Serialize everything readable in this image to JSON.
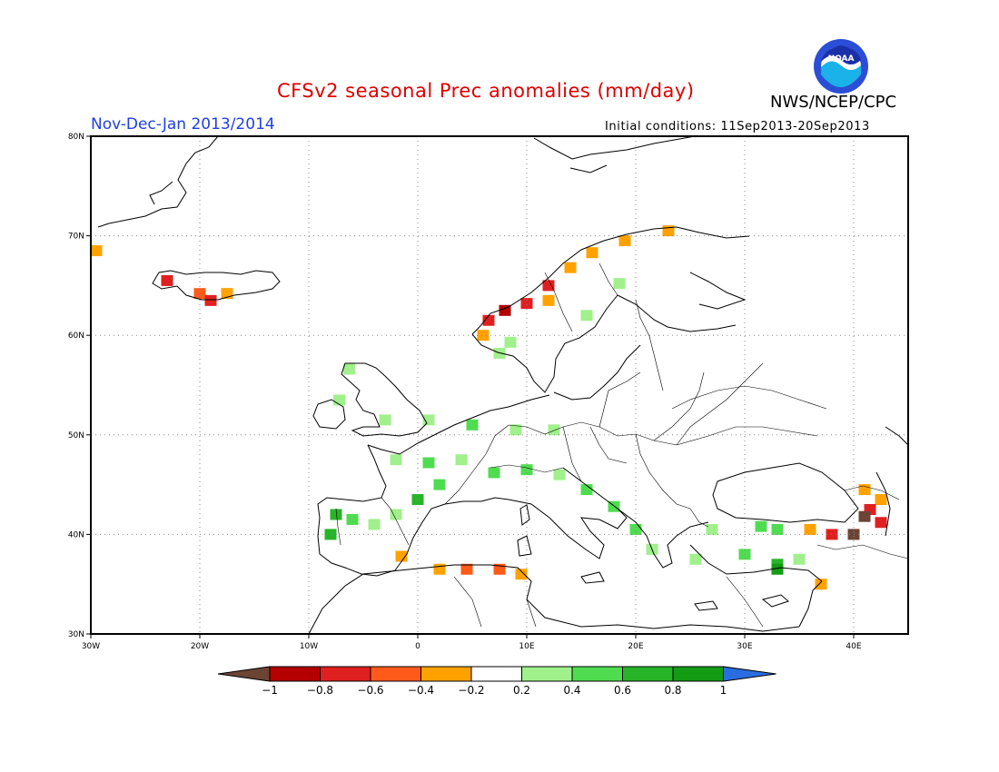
{
  "header": {
    "title": "CFSv2 seasonal Prec anomalies (mm/day)",
    "period": "Nov-Dec-Jan 2013/2014",
    "initial_conditions": "Initial conditions: 11Sep2013-20Sep2013",
    "organization": "NWS/NCEP/CPC",
    "logo_text": "NOAA"
  },
  "map": {
    "lon_labels": [
      "30W",
      "20W",
      "10W",
      "0",
      "10E",
      "20E",
      "30E",
      "40E"
    ],
    "lat_labels": [
      "30N",
      "40N",
      "50N",
      "60N",
      "70N",
      "80N"
    ],
    "lon_range": [
      -30,
      45
    ],
    "lat_range": [
      30,
      80
    ]
  },
  "colorbar": {
    "labels": [
      "-1",
      "-0.8",
      "-0.6",
      "-0.4",
      "-0.2",
      "0.2",
      "0.4",
      "0.6",
      "0.8",
      "1"
    ],
    "colors": [
      "#6b4434",
      "#b40000",
      "#e02020",
      "#ff5a1a",
      "#ffa200",
      "#ffffff",
      "#a0f08c",
      "#50dc50",
      "#28b428",
      "#149b14",
      "#2a6de0"
    ]
  },
  "anomaly_cells": [
    {
      "lon": -29.5,
      "lat": 68.5,
      "v": -0.3
    },
    {
      "lon": -23,
      "lat": 65.5,
      "v": -0.7
    },
    {
      "lon": -20,
      "lat": 64.2,
      "v": -0.5
    },
    {
      "lon": -19,
      "lat": 63.5,
      "v": -0.8
    },
    {
      "lon": -17.5,
      "lat": 64.2,
      "v": -0.3
    },
    {
      "lon": 6.5,
      "lat": 61.5,
      "v": -0.8
    },
    {
      "lon": 8,
      "lat": 62.5,
      "v": -0.9
    },
    {
      "lon": 10,
      "lat": 63.2,
      "v": -0.7
    },
    {
      "lon": 12,
      "lat": 65,
      "v": -0.7
    },
    {
      "lon": 14,
      "lat": 66.8,
      "v": -0.3
    },
    {
      "lon": 16,
      "lat": 68.3,
      "v": -0.3
    },
    {
      "lon": 19,
      "lat": 69.5,
      "v": -0.3
    },
    {
      "lon": 23,
      "lat": 70.5,
      "v": -0.3
    },
    {
      "lon": 6,
      "lat": 60,
      "v": -0.3
    },
    {
      "lon": 12,
      "lat": 63.5,
      "v": -0.3
    },
    {
      "lon": 18.5,
      "lat": 65.2,
      "v": 0.3
    },
    {
      "lon": 15.5,
      "lat": 62.0,
      "v": 0.3
    },
    {
      "lon": 8.5,
      "lat": 59.3,
      "v": 0.3
    },
    {
      "lon": 7.5,
      "lat": 58.2,
      "v": 0.3
    },
    {
      "lon": -6.3,
      "lat": 56.6,
      "v": 0.3
    },
    {
      "lon": -7.2,
      "lat": 53.5,
      "v": 0.3
    },
    {
      "lon": -3,
      "lat": 51.5,
      "v": 0.3
    },
    {
      "lon": 1,
      "lat": 51.5,
      "v": 0.3
    },
    {
      "lon": 5,
      "lat": 51,
      "v": 0.4
    },
    {
      "lon": 9,
      "lat": 50.5,
      "v": 0.3
    },
    {
      "lon": 12.5,
      "lat": 50.5,
      "v": 0.3
    },
    {
      "lon": -2,
      "lat": 47.5,
      "v": 0.3
    },
    {
      "lon": 1,
      "lat": 47.2,
      "v": 0.4
    },
    {
      "lon": 4,
      "lat": 47.5,
      "v": 0.3
    },
    {
      "lon": 2,
      "lat": 45,
      "v": 0.4
    },
    {
      "lon": 0,
      "lat": 43.5,
      "v": 0.6
    },
    {
      "lon": 7,
      "lat": 46.2,
      "v": 0.5
    },
    {
      "lon": 10,
      "lat": 46.5,
      "v": 0.4
    },
    {
      "lon": 13,
      "lat": 46,
      "v": 0.3
    },
    {
      "lon": 15.5,
      "lat": 44.5,
      "v": 0.4
    },
    {
      "lon": 18,
      "lat": 42.8,
      "v": 0.4
    },
    {
      "lon": 20,
      "lat": 40.5,
      "v": 0.4
    },
    {
      "lon": 21.5,
      "lat": 38.5,
      "v": 0.3
    },
    {
      "lon": -7.5,
      "lat": 42,
      "v": 0.7
    },
    {
      "lon": -8,
      "lat": 40,
      "v": 0.6
    },
    {
      "lon": -6,
      "lat": 41.5,
      "v": 0.5
    },
    {
      "lon": -4,
      "lat": 41,
      "v": 0.3
    },
    {
      "lon": -2,
      "lat": 42,
      "v": 0.3
    },
    {
      "lon": 27,
      "lat": 40.5,
      "v": 0.3
    },
    {
      "lon": 30,
      "lat": 38,
      "v": 0.4
    },
    {
      "lon": 33,
      "lat": 37,
      "v": 0.6
    },
    {
      "lon": 33,
      "lat": 36.5,
      "v": 0.8
    },
    {
      "lon": 35,
      "lat": 37.5,
      "v": 0.3
    },
    {
      "lon": 31.5,
      "lat": 40.8,
      "v": 0.4
    },
    {
      "lon": 33,
      "lat": 40.5,
      "v": 0.5
    },
    {
      "lon": 25.5,
      "lat": 37.5,
      "v": 0.3
    },
    {
      "lon": 41,
      "lat": 44.5,
      "v": -0.4
    },
    {
      "lon": 42.5,
      "lat": 43.5,
      "v": -0.3
    },
    {
      "lon": 41.5,
      "lat": 42.5,
      "v": -0.8
    },
    {
      "lon": 41,
      "lat": 41.8,
      "v": -1.0
    },
    {
      "lon": 42.5,
      "lat": 41.2,
      "v": -0.7
    },
    {
      "lon": 40,
      "lat": 40,
      "v": -1.0
    },
    {
      "lon": 38,
      "lat": 40,
      "v": -0.7
    },
    {
      "lon": 36,
      "lat": 40.5,
      "v": -0.3
    },
    {
      "lon": 37,
      "lat": 35,
      "v": -0.3
    },
    {
      "lon": 2,
      "lat": 36.5,
      "v": -0.3
    },
    {
      "lon": 4.5,
      "lat": 36.5,
      "v": -0.5
    },
    {
      "lon": 7.5,
      "lat": 36.5,
      "v": -0.5
    },
    {
      "lon": 9.5,
      "lat": 36,
      "v": -0.3
    },
    {
      "lon": -1.5,
      "lat": 37.8,
      "v": -0.3
    }
  ]
}
